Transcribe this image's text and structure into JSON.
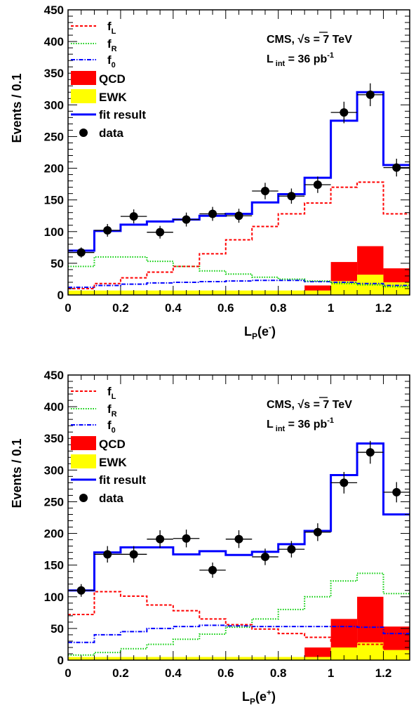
{
  "chart_data": [
    {
      "type": "bar",
      "xlim": [
        0,
        1.3
      ],
      "ylim": [
        0,
        450
      ],
      "ylabel": "Events / 0.1",
      "xlabel": "L_P(e^-)",
      "xlabel_parts": {
        "main": "L",
        "sub": "P",
        "open": "(e",
        "sup": "-",
        "close": ")"
      },
      "xticks": [
        "0",
        "0.2",
        "0.4",
        "0.6",
        "0.8",
        "1",
        "1.2"
      ],
      "xtick_values": [
        0,
        0.2,
        0.4,
        0.6,
        0.8,
        1.0,
        1.2
      ],
      "yticks": [
        "0",
        "50",
        "100",
        "150",
        "200",
        "250",
        "300",
        "350",
        "400",
        "450"
      ],
      "ytick_values": [
        0,
        50,
        100,
        150,
        200,
        250,
        300,
        350,
        400,
        450
      ],
      "bin_edges": [
        0,
        0.1,
        0.2,
        0.3,
        0.4,
        0.5,
        0.6,
        0.7,
        0.8,
        0.9,
        1.0,
        1.1,
        1.2,
        1.3
      ],
      "annotation": {
        "experiment": "CMS, ",
        "sqrt": "√",
        "energy": "s = 7 TeV",
        "lumi_main": "L",
        "lumi_sub": "int",
        "lumi_val": " = 36 pb",
        "lumi_sup": "-1"
      },
      "legend": [
        {
          "key": "fL",
          "label": "f",
          "sub": "L"
        },
        {
          "key": "fR",
          "label": "f",
          "sub": "R"
        },
        {
          "key": "f0",
          "label": "f",
          "sub": "0"
        },
        {
          "key": "qcd",
          "label": "QCD"
        },
        {
          "key": "ewk",
          "label": "EWK"
        },
        {
          "key": "fit",
          "label": "fit result"
        },
        {
          "key": "data",
          "label": "data"
        }
      ],
      "series": {
        "ewk": [
          7,
          7,
          7,
          7,
          7,
          7,
          7,
          7,
          7,
          7,
          22,
          32,
          20
        ],
        "qcd": [
          0,
          0,
          0,
          0,
          0,
          0,
          0,
          0,
          0,
          8,
          30,
          45,
          22
        ],
        "fL": [
          10,
          18,
          27,
          36,
          45,
          65,
          87,
          108,
          128,
          145,
          170,
          178,
          128
        ],
        "fR": [
          45,
          60,
          60,
          53,
          45,
          38,
          33,
          28,
          25,
          22,
          18,
          16,
          13
        ],
        "f0": [
          12,
          15,
          17,
          19,
          20,
          21,
          22,
          23,
          23,
          21,
          20,
          18,
          15
        ],
        "fit": [
          70,
          101,
          111,
          116,
          119,
          125,
          128,
          146,
          159,
          185,
          275,
          320,
          205
        ]
      },
      "data_points": {
        "x": [
          0.05,
          0.15,
          0.25,
          0.35,
          0.45,
          0.55,
          0.65,
          0.75,
          0.85,
          0.95,
          1.05,
          1.15,
          1.25
        ],
        "y": [
          67,
          102,
          124,
          99,
          119,
          128,
          125,
          164,
          156,
          174,
          288,
          316,
          201
        ],
        "yerr": [
          8,
          10,
          11,
          10,
          11,
          11,
          11,
          13,
          12,
          13,
          17,
          18,
          14
        ]
      }
    },
    {
      "type": "bar",
      "xlim": [
        0,
        1.3
      ],
      "ylim": [
        0,
        450
      ],
      "ylabel": "Events / 0.1",
      "xlabel": "L_P(e^+)",
      "xlabel_parts": {
        "main": "L",
        "sub": "P",
        "open": "(e",
        "sup": "+",
        "close": ")"
      },
      "xticks": [
        "0",
        "0.2",
        "0.4",
        "0.6",
        "0.8",
        "1",
        "1.2"
      ],
      "xtick_values": [
        0,
        0.2,
        0.4,
        0.6,
        0.8,
        1.0,
        1.2
      ],
      "yticks": [
        "0",
        "50",
        "100",
        "150",
        "200",
        "250",
        "300",
        "350",
        "400",
        "450"
      ],
      "ytick_values": [
        0,
        50,
        100,
        150,
        200,
        250,
        300,
        350,
        400,
        450
      ],
      "bin_edges": [
        0,
        0.1,
        0.2,
        0.3,
        0.4,
        0.5,
        0.6,
        0.7,
        0.8,
        0.9,
        1.0,
        1.1,
        1.2,
        1.3
      ],
      "annotation": {
        "experiment": "CMS, ",
        "sqrt": "√",
        "energy": "s = 7 TeV",
        "lumi_main": "L",
        "lumi_sub": "int",
        "lumi_val": " = 36 pb",
        "lumi_sup": "-1"
      },
      "legend": [
        {
          "key": "fL",
          "label": "f",
          "sub": "L"
        },
        {
          "key": "fR",
          "label": "f",
          "sub": "R"
        },
        {
          "key": "f0",
          "label": "f",
          "sub": "0"
        },
        {
          "key": "qcd",
          "label": "QCD"
        },
        {
          "key": "ewk",
          "label": "EWK"
        },
        {
          "key": "fit",
          "label": "fit result"
        },
        {
          "key": "data",
          "label": "data"
        }
      ],
      "series": {
        "ewk": [
          5,
          5,
          5,
          5,
          5,
          5,
          5,
          5,
          5,
          5,
          20,
          28,
          16
        ],
        "qcd": [
          0,
          0,
          0,
          0,
          0,
          0,
          0,
          0,
          0,
          15,
          45,
          72,
          37
        ],
        "fL": [
          72,
          108,
          101,
          87,
          78,
          65,
          56,
          49,
          42,
          36,
          30,
          25,
          18
        ],
        "fR": [
          8,
          12,
          18,
          25,
          33,
          41,
          52,
          65,
          80,
          100,
          125,
          137,
          105
        ],
        "f0": [
          28,
          40,
          45,
          50,
          53,
          55,
          54,
          53,
          53,
          53,
          53,
          52,
          42
        ],
        "fit": [
          110,
          170,
          178,
          178,
          167,
          172,
          166,
          171,
          183,
          204,
          292,
          342,
          230
        ]
      },
      "data_points": {
        "x": [
          0.05,
          0.15,
          0.25,
          0.35,
          0.45,
          0.55,
          0.65,
          0.75,
          0.85,
          0.95,
          1.05,
          1.15,
          1.25
        ],
        "y": [
          110,
          167,
          167,
          191,
          192,
          142,
          191,
          163,
          175,
          202,
          280,
          328,
          265
        ],
        "yerr": [
          10,
          13,
          13,
          14,
          14,
          12,
          14,
          13,
          13,
          14,
          17,
          18,
          16
        ]
      }
    }
  ],
  "colors": {
    "qcd": "#ff0000",
    "ewk": "#ffff00",
    "fL": "#ff0000",
    "fR": "#00cc00",
    "f0": "#0000ff",
    "fit": "#0000ff",
    "data": "#000000"
  }
}
